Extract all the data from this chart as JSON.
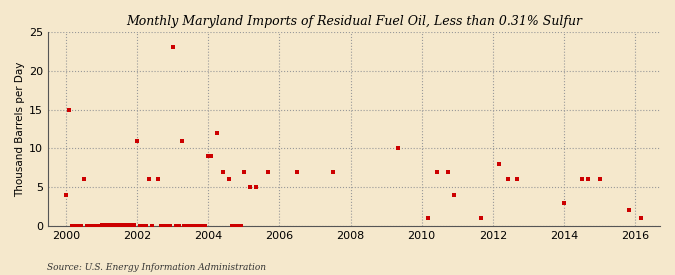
{
  "title": "Monthly Maryland Imports of Residual Fuel Oil, Less than 0.31% Sulfur",
  "ylabel": "Thousand Barrels per Day",
  "source": "Source: U.S. Energy Information Administration",
  "background_color": "#f5e8cc",
  "plot_background_color": "#f5e8cc",
  "marker_color": "#cc0000",
  "marker_size": 5,
  "xlim": [
    1999.5,
    2016.7
  ],
  "ylim": [
    0,
    25
  ],
  "yticks": [
    0,
    5,
    10,
    15,
    20,
    25
  ],
  "xticks": [
    2000,
    2002,
    2004,
    2006,
    2008,
    2010,
    2012,
    2014,
    2016
  ],
  "data_points": [
    [
      2000.0,
      4.0
    ],
    [
      2000.08,
      15.0
    ],
    [
      2000.5,
      6.0
    ],
    [
      2001.0,
      0.1
    ],
    [
      2001.08,
      0.1
    ],
    [
      2001.17,
      0.1
    ],
    [
      2001.25,
      0.1
    ],
    [
      2001.33,
      0.1
    ],
    [
      2001.42,
      0.1
    ],
    [
      2001.5,
      0.1
    ],
    [
      2001.58,
      0.1
    ],
    [
      2001.67,
      0.1
    ],
    [
      2001.75,
      0.1
    ],
    [
      2001.83,
      0.1
    ],
    [
      2001.92,
      0.1
    ],
    [
      2002.0,
      11.0
    ],
    [
      2002.33,
      6.0
    ],
    [
      2002.58,
      6.0
    ],
    [
      2003.0,
      23.0
    ],
    [
      2003.25,
      11.0
    ],
    [
      2004.0,
      9.0
    ],
    [
      2004.08,
      9.0
    ],
    [
      2004.25,
      12.0
    ],
    [
      2004.42,
      7.0
    ],
    [
      2004.58,
      6.0
    ],
    [
      2005.0,
      7.0
    ],
    [
      2005.17,
      5.0
    ],
    [
      2005.33,
      5.0
    ],
    [
      2005.67,
      7.0
    ],
    [
      2006.5,
      7.0
    ],
    [
      2007.5,
      7.0
    ],
    [
      2009.33,
      10.0
    ],
    [
      2010.17,
      1.0
    ],
    [
      2010.42,
      7.0
    ],
    [
      2010.75,
      7.0
    ],
    [
      2010.92,
      4.0
    ],
    [
      2011.67,
      1.0
    ],
    [
      2012.17,
      8.0
    ],
    [
      2012.42,
      6.0
    ],
    [
      2012.67,
      6.0
    ],
    [
      2014.0,
      3.0
    ],
    [
      2014.5,
      6.0
    ],
    [
      2014.67,
      6.0
    ],
    [
      2015.0,
      6.0
    ],
    [
      2015.83,
      2.0
    ],
    [
      2016.17,
      1.0
    ]
  ],
  "zero_points": [
    [
      2000.17,
      0
    ],
    [
      2000.25,
      0
    ],
    [
      2000.33,
      0
    ],
    [
      2000.42,
      0
    ],
    [
      2000.58,
      0
    ],
    [
      2000.67,
      0
    ],
    [
      2000.75,
      0
    ],
    [
      2000.83,
      0
    ],
    [
      2000.92,
      0
    ],
    [
      2001.0,
      0
    ],
    [
      2001.08,
      0
    ],
    [
      2001.17,
      0
    ],
    [
      2001.25,
      0
    ],
    [
      2001.33,
      0
    ],
    [
      2001.42,
      0
    ],
    [
      2001.5,
      0
    ],
    [
      2001.58,
      0
    ],
    [
      2001.67,
      0
    ],
    [
      2001.75,
      0
    ],
    [
      2001.83,
      0
    ],
    [
      2001.92,
      0
    ],
    [
      2002.08,
      0
    ],
    [
      2002.17,
      0
    ],
    [
      2002.25,
      0
    ],
    [
      2002.42,
      0
    ],
    [
      2002.67,
      0
    ],
    [
      2002.75,
      0
    ],
    [
      2002.83,
      0
    ],
    [
      2002.92,
      0
    ],
    [
      2003.08,
      0
    ],
    [
      2003.17,
      0
    ],
    [
      2003.33,
      0
    ],
    [
      2003.42,
      0
    ],
    [
      2003.5,
      0
    ],
    [
      2003.58,
      0
    ],
    [
      2003.67,
      0
    ],
    [
      2003.75,
      0
    ],
    [
      2003.83,
      0
    ],
    [
      2003.92,
      0
    ],
    [
      2004.67,
      0
    ],
    [
      2004.75,
      0
    ],
    [
      2004.83,
      0
    ],
    [
      2004.92,
      0
    ]
  ]
}
